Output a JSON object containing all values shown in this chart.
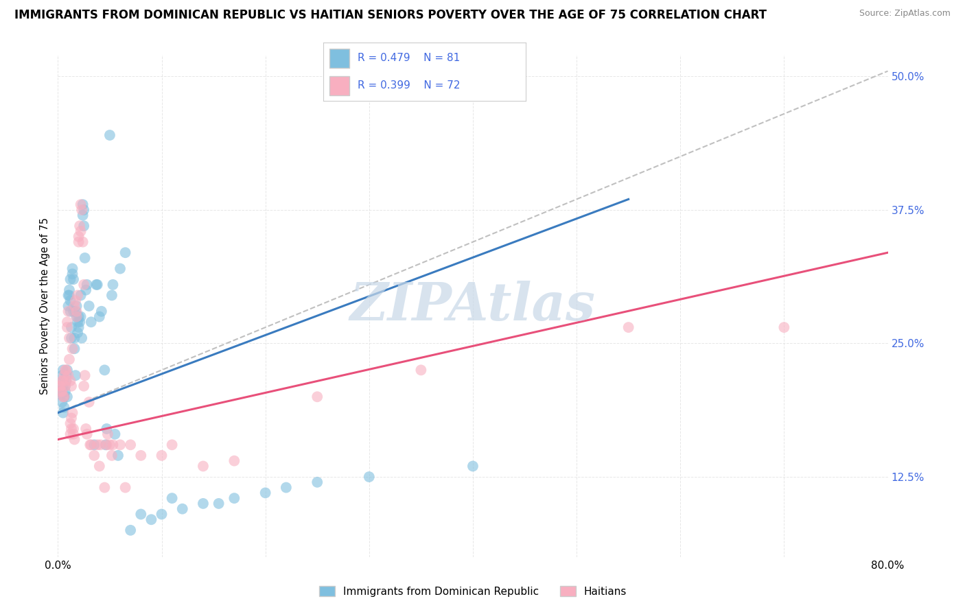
{
  "title": "IMMIGRANTS FROM DOMINICAN REPUBLIC VS HAITIAN SENIORS POVERTY OVER THE AGE OF 75 CORRELATION CHART",
  "source": "Source: ZipAtlas.com",
  "ylabel": "Seniors Poverty Over the Age of 75",
  "y_tick_labels": [
    "12.5%",
    "25.0%",
    "37.5%",
    "50.0%"
  ],
  "xlim": [
    0,
    80
  ],
  "ylim": [
    5,
    52
  ],
  "legend_label1": "Immigrants from Dominican Republic",
  "legend_label2": "Haitians",
  "blue_color": "#7fbfdf",
  "pink_color": "#f8afc0",
  "blue_line_color": "#3a7bbf",
  "pink_line_color": "#e8507a",
  "dashed_line_color": "#c0c0c0",
  "watermark": "ZIPAtlas",
  "scatter_blue": [
    [
      0.2,
      20.5
    ],
    [
      0.3,
      20.2
    ],
    [
      0.4,
      19.5
    ],
    [
      0.4,
      22.0
    ],
    [
      0.5,
      18.5
    ],
    [
      0.5,
      21.0
    ],
    [
      0.5,
      22.5
    ],
    [
      0.5,
      21.5
    ],
    [
      0.6,
      20.0
    ],
    [
      0.6,
      19.0
    ],
    [
      0.7,
      20.5
    ],
    [
      0.7,
      21.0
    ],
    [
      0.8,
      22.0
    ],
    [
      0.8,
      21.5
    ],
    [
      0.9,
      20.0
    ],
    [
      0.9,
      22.5
    ],
    [
      1.0,
      28.5
    ],
    [
      1.0,
      29.5
    ],
    [
      1.1,
      30.0
    ],
    [
      1.1,
      29.5
    ],
    [
      1.2,
      29.0
    ],
    [
      1.2,
      31.0
    ],
    [
      1.2,
      28.0
    ],
    [
      1.3,
      26.5
    ],
    [
      1.3,
      25.5
    ],
    [
      1.4,
      32.0
    ],
    [
      1.4,
      31.5
    ],
    [
      1.5,
      31.0
    ],
    [
      1.5,
      28.0
    ],
    [
      1.6,
      24.5
    ],
    [
      1.6,
      25.5
    ],
    [
      1.7,
      28.0
    ],
    [
      1.7,
      22.0
    ],
    [
      1.8,
      27.5
    ],
    [
      1.8,
      28.5
    ],
    [
      1.9,
      26.0
    ],
    [
      1.9,
      27.0
    ],
    [
      2.0,
      26.5
    ],
    [
      2.0,
      27.5
    ],
    [
      2.1,
      27.0
    ],
    [
      2.2,
      27.5
    ],
    [
      2.2,
      29.5
    ],
    [
      2.3,
      25.5
    ],
    [
      2.4,
      38.0
    ],
    [
      2.4,
      37.0
    ],
    [
      2.5,
      36.0
    ],
    [
      2.5,
      37.5
    ],
    [
      2.6,
      33.0
    ],
    [
      2.7,
      30.0
    ],
    [
      2.8,
      30.5
    ],
    [
      3.0,
      28.5
    ],
    [
      3.2,
      27.0
    ],
    [
      3.5,
      15.5
    ],
    [
      3.7,
      30.5
    ],
    [
      3.8,
      30.5
    ],
    [
      4.0,
      27.5
    ],
    [
      4.2,
      28.0
    ],
    [
      4.5,
      22.5
    ],
    [
      4.6,
      15.5
    ],
    [
      4.7,
      17.0
    ],
    [
      5.0,
      44.5
    ],
    [
      5.2,
      29.5
    ],
    [
      5.3,
      30.5
    ],
    [
      5.5,
      16.5
    ],
    [
      5.8,
      14.5
    ],
    [
      6.0,
      32.0
    ],
    [
      6.5,
      33.5
    ],
    [
      7.0,
      7.5
    ],
    [
      8.0,
      9.0
    ],
    [
      9.0,
      8.5
    ],
    [
      10.0,
      9.0
    ],
    [
      11.0,
      10.5
    ],
    [
      12.0,
      9.5
    ],
    [
      14.0,
      10.0
    ],
    [
      15.5,
      10.0
    ],
    [
      17.0,
      10.5
    ],
    [
      20.0,
      11.0
    ],
    [
      22.0,
      11.5
    ],
    [
      25.0,
      12.0
    ],
    [
      30.0,
      12.5
    ],
    [
      40.0,
      13.5
    ]
  ],
  "scatter_pink": [
    [
      0.2,
      21.0
    ],
    [
      0.3,
      20.5
    ],
    [
      0.3,
      21.0
    ],
    [
      0.4,
      20.5
    ],
    [
      0.4,
      21.5
    ],
    [
      0.5,
      20.0
    ],
    [
      0.5,
      21.5
    ],
    [
      0.6,
      20.0
    ],
    [
      0.6,
      22.0
    ],
    [
      0.7,
      21.0
    ],
    [
      0.7,
      22.5
    ],
    [
      0.8,
      21.5
    ],
    [
      0.8,
      22.5
    ],
    [
      0.9,
      27.0
    ],
    [
      0.9,
      26.5
    ],
    [
      1.0,
      28.0
    ],
    [
      1.0,
      22.0
    ],
    [
      1.1,
      23.5
    ],
    [
      1.1,
      25.5
    ],
    [
      1.2,
      21.5
    ],
    [
      1.2,
      17.5
    ],
    [
      1.2,
      16.5
    ],
    [
      1.3,
      21.0
    ],
    [
      1.3,
      17.0
    ],
    [
      1.3,
      18.0
    ],
    [
      1.4,
      24.5
    ],
    [
      1.4,
      18.5
    ],
    [
      1.5,
      16.5
    ],
    [
      1.5,
      17.0
    ],
    [
      1.6,
      16.0
    ],
    [
      1.6,
      28.5
    ],
    [
      1.7,
      29.0
    ],
    [
      1.8,
      27.5
    ],
    [
      1.8,
      28.0
    ],
    [
      1.9,
      29.5
    ],
    [
      2.0,
      35.0
    ],
    [
      2.0,
      34.5
    ],
    [
      2.1,
      36.0
    ],
    [
      2.2,
      35.5
    ],
    [
      2.2,
      38.0
    ],
    [
      2.3,
      37.5
    ],
    [
      2.4,
      34.5
    ],
    [
      2.5,
      30.5
    ],
    [
      2.5,
      21.0
    ],
    [
      2.6,
      22.0
    ],
    [
      2.7,
      17.0
    ],
    [
      2.8,
      16.5
    ],
    [
      3.0,
      19.5
    ],
    [
      3.1,
      15.5
    ],
    [
      3.2,
      15.5
    ],
    [
      3.5,
      14.5
    ],
    [
      3.8,
      15.5
    ],
    [
      4.0,
      13.5
    ],
    [
      4.1,
      15.5
    ],
    [
      4.5,
      11.5
    ],
    [
      4.7,
      15.5
    ],
    [
      4.8,
      16.5
    ],
    [
      5.0,
      15.5
    ],
    [
      5.2,
      14.5
    ],
    [
      5.3,
      15.5
    ],
    [
      6.0,
      15.5
    ],
    [
      6.5,
      11.5
    ],
    [
      7.0,
      15.5
    ],
    [
      8.0,
      14.5
    ],
    [
      10.0,
      14.5
    ],
    [
      11.0,
      15.5
    ],
    [
      14.0,
      13.5
    ],
    [
      17.0,
      14.0
    ],
    [
      25.0,
      20.0
    ],
    [
      35.0,
      22.5
    ],
    [
      55.0,
      26.5
    ],
    [
      70.0,
      26.5
    ]
  ],
  "blue_line": [
    [
      0,
      18.5
    ],
    [
      55,
      38.5
    ]
  ],
  "pink_line": [
    [
      0,
      16.0
    ],
    [
      80,
      33.5
    ]
  ],
  "dashed_line": [
    [
      0,
      18.5
    ],
    [
      80,
      50.5
    ]
  ],
  "grid_color": "#e0e0e0",
  "background_color": "#ffffff",
  "title_fontsize": 12,
  "watermark_color": "#c8d8e8",
  "watermark_fontsize": 55,
  "axis_color": "#4169e1"
}
